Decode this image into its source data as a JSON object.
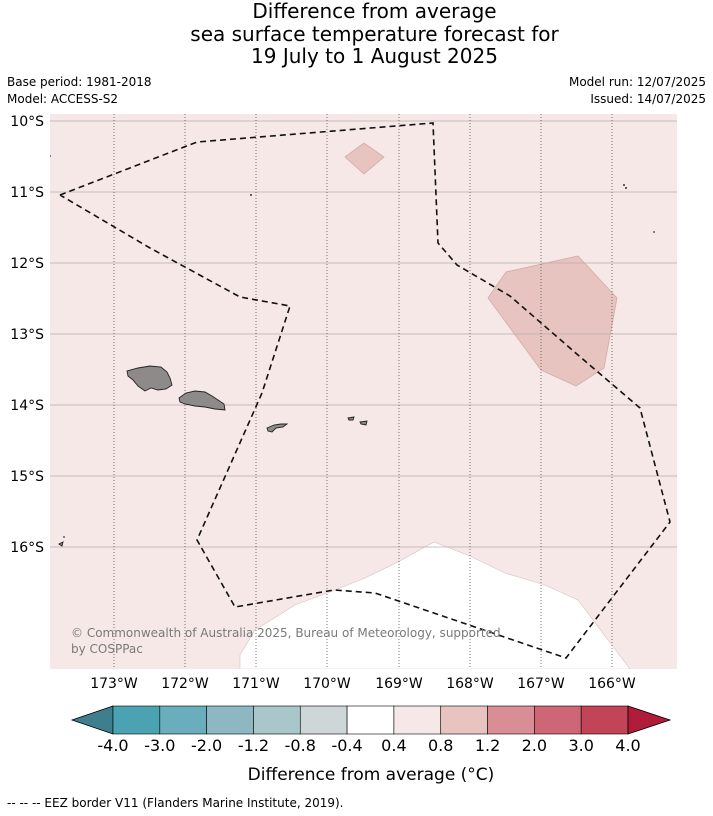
{
  "title": {
    "line1": "Difference from average",
    "line2": "sea surface temperature forecast for",
    "line3": "19 July to 1 August 2025"
  },
  "meta": {
    "base_period": "Base period: 1981-2018",
    "model": "Model: ACCESS-S2",
    "model_run": "Model run: 12/07/2025",
    "issued": "Issued: 14/07/2025"
  },
  "map": {
    "lat_labels": [
      "10°S",
      "11°S",
      "12°S",
      "13°S",
      "14°S",
      "15°S",
      "16°S"
    ],
    "lon_labels": [
      "173°W",
      "172°W",
      "171°W",
      "170°W",
      "169°W",
      "168°W",
      "167°W",
      "166°W"
    ],
    "background_color": "#f5e8e6",
    "highlight_color": "#e7c4bf",
    "land_color": "#8f8a8a",
    "copyright": "© Commonwealth of Australia 2025, Bureau of Meteorology, supported by COSPPac"
  },
  "colorbar": {
    "title": "Difference from average (°C)",
    "ticks": [
      "-4.0",
      "-3.0",
      "-2.0",
      "-1.2",
      "-0.8",
      "-0.4",
      "0.4",
      "0.8",
      "1.2",
      "2.0",
      "3.0",
      "4.0"
    ],
    "colors": [
      "#3f7f8d",
      "#4aa2b3",
      "#6aaebd",
      "#8db8c2",
      "#a9c6ca",
      "#ced6d7",
      "#ffffff",
      "#f5e8e6",
      "#e7c4bf",
      "#d98e96",
      "#cf6675",
      "#c14556",
      "#b21c3b"
    ]
  },
  "legend": {
    "eez": "--  --  -- EEZ border V11 (Flanders Marine Institute, 2019)."
  }
}
